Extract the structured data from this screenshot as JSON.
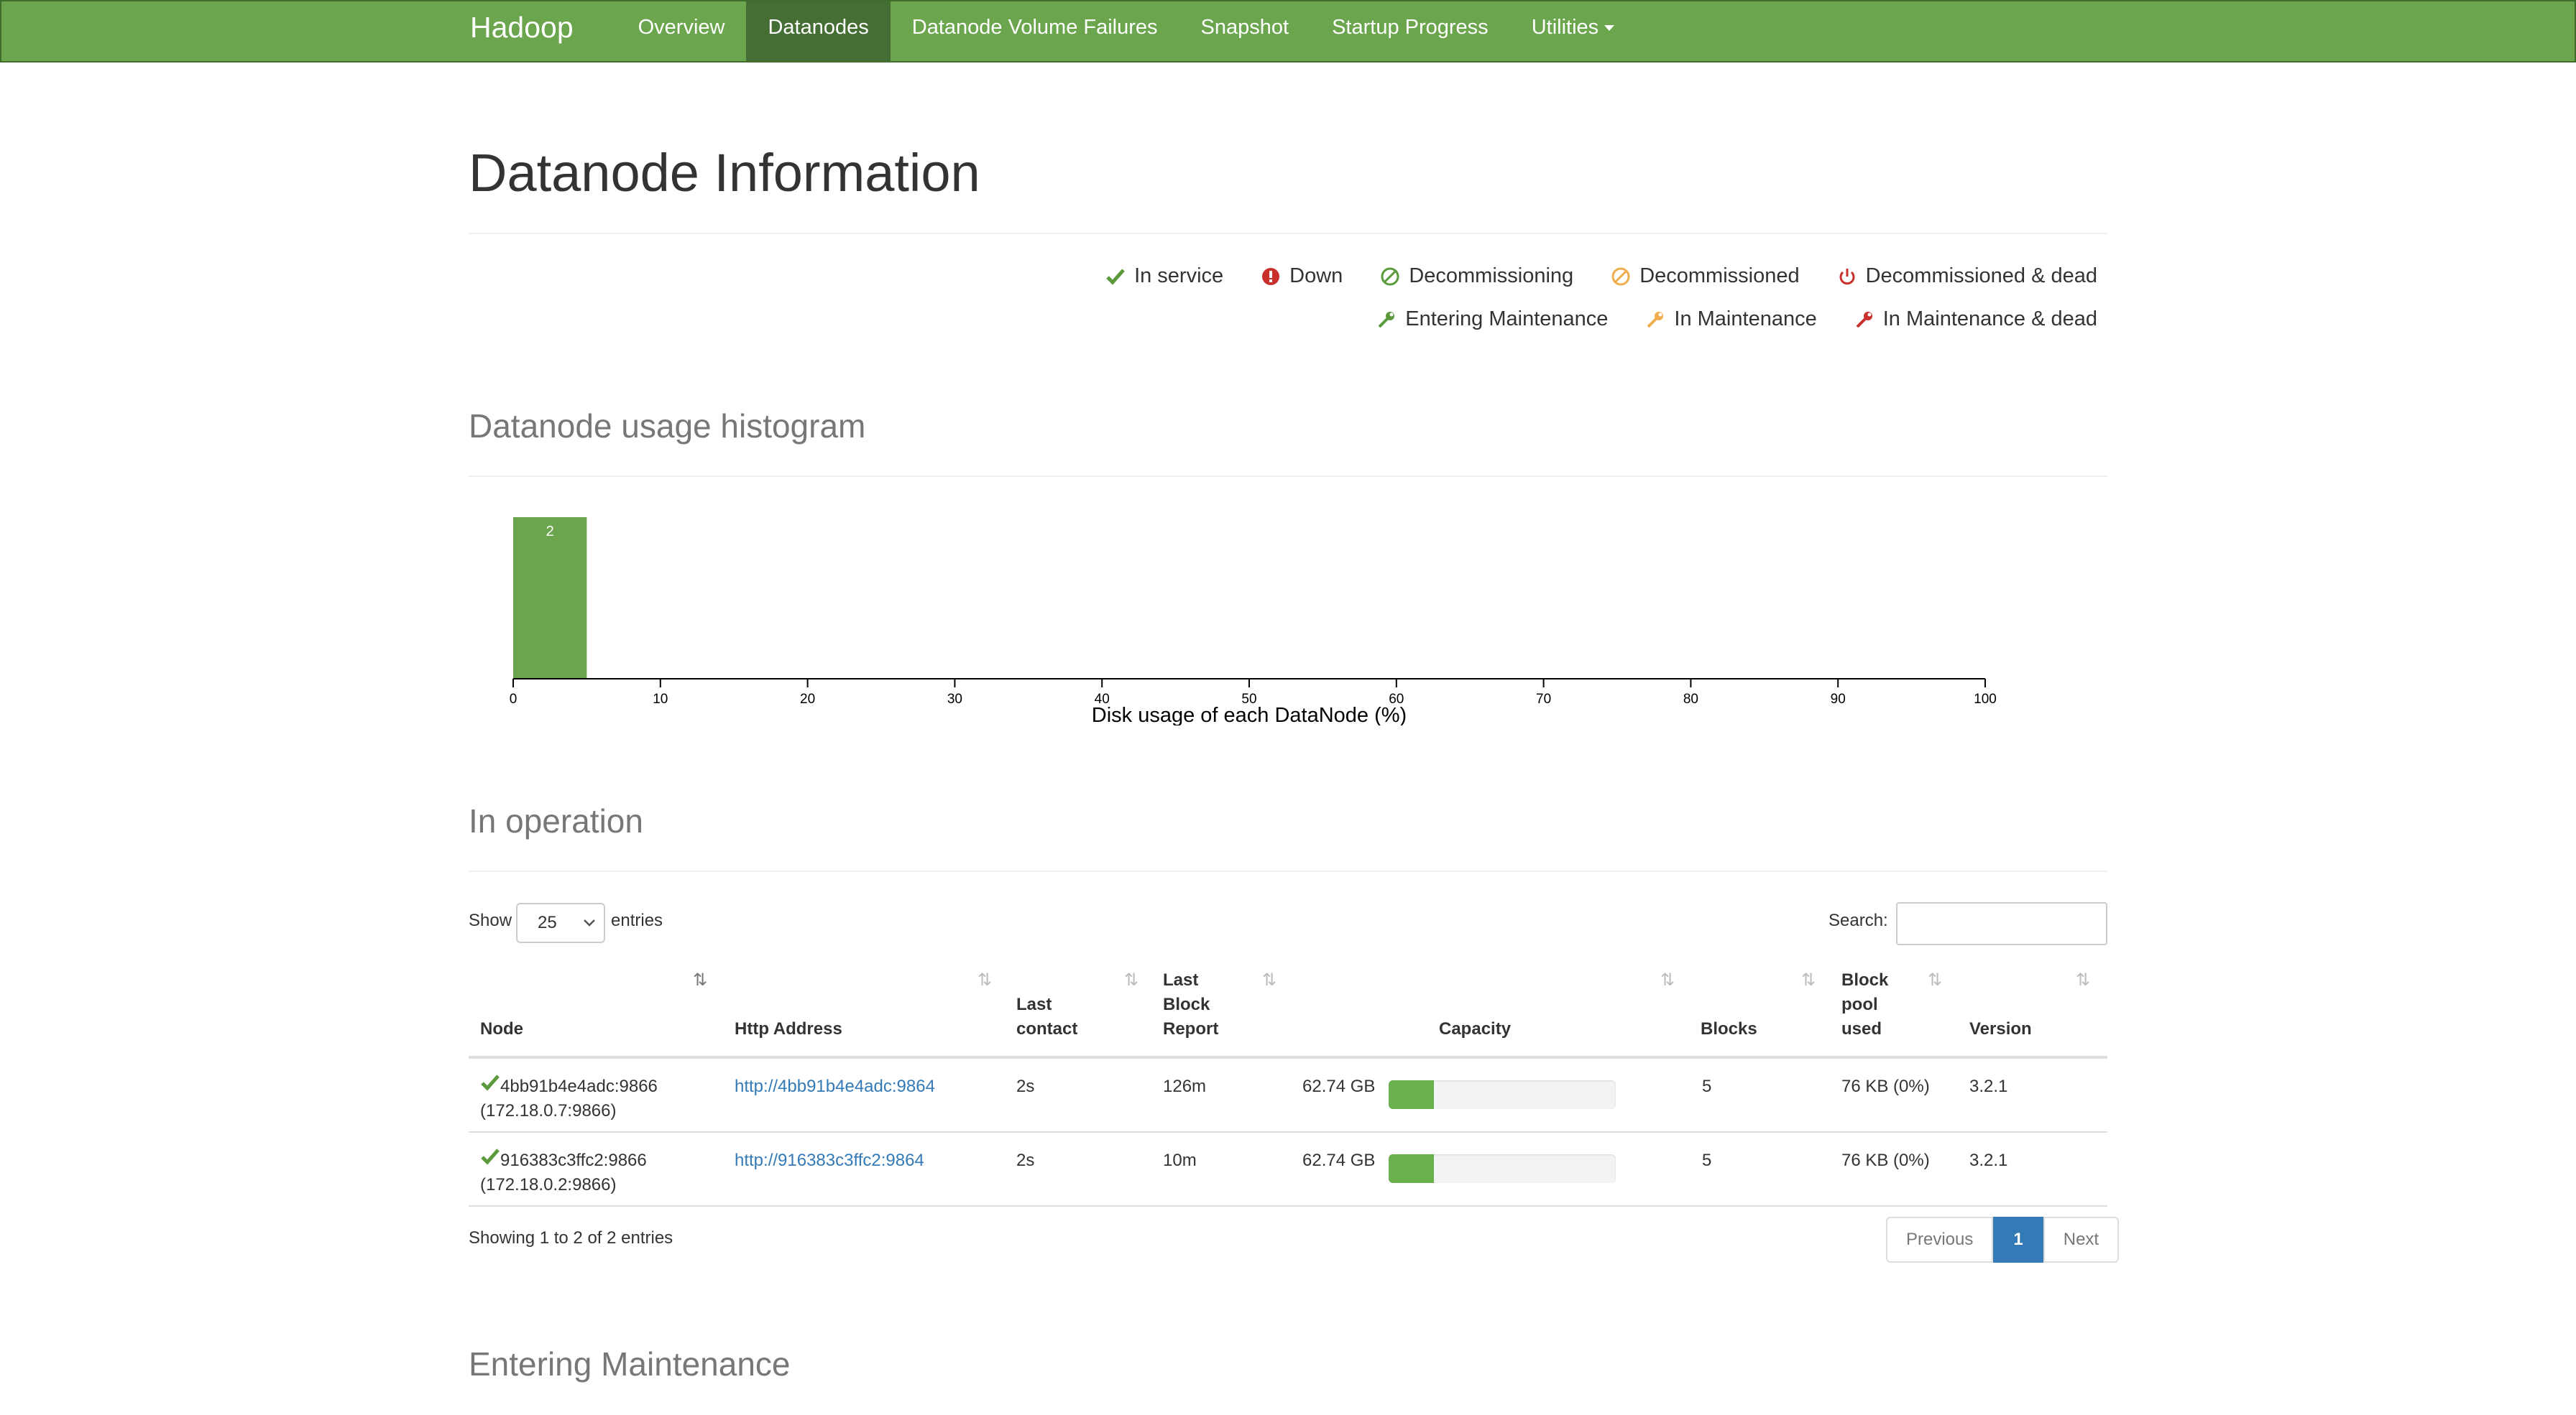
{
  "nav": {
    "brand": "Hadoop",
    "items": [
      {
        "label": "Overview"
      },
      {
        "label": "Datanodes"
      },
      {
        "label": "Datanode Volume Failures"
      },
      {
        "label": "Snapshot"
      },
      {
        "label": "Startup Progress"
      },
      {
        "label": "Utilities"
      }
    ]
  },
  "page": {
    "title": "Datanode Information"
  },
  "legend": {
    "in_service": "In service",
    "down": "Down",
    "decommissioning": "Decommissioning",
    "decommissioned": "Decommissioned",
    "decommissioned_dead": "Decommissioned & dead",
    "entering_maintenance": "Entering Maintenance",
    "in_maintenance": "In Maintenance",
    "in_maintenance_dead": "In Maintenance & dead",
    "colors": {
      "green": "#5a9a3c",
      "red": "#c9302c",
      "orange": "#f0ad4e"
    }
  },
  "histogram": {
    "title": "Datanode usage histogram"
  },
  "chart_data": {
    "type": "bar",
    "title": "",
    "xlabel": "Disk usage of each DataNode (%)",
    "ylabel": "",
    "xlim": [
      0,
      100
    ],
    "ticks": [
      "0",
      "10",
      "20",
      "30",
      "40",
      "50",
      "60",
      "70",
      "80",
      "90",
      "100"
    ],
    "bins": [
      {
        "x0": 0,
        "x1": 5,
        "count": 2
      }
    ],
    "bar_color": "#6ba54e"
  },
  "in_operation": {
    "title": "In operation",
    "show_label": "Show",
    "entries_value": "25",
    "entries_label": "entries",
    "search_label": "Search:",
    "columns": {
      "node": "Node",
      "http": "Http Address",
      "last_contact": [
        "Last",
        "contact"
      ],
      "last_block": [
        "Last",
        "Block",
        "Report"
      ],
      "capacity": "Capacity",
      "blocks": "Blocks",
      "pool": [
        "Block",
        "pool",
        "used"
      ],
      "version": "Version"
    },
    "rows": [
      {
        "node": "4bb91b4e4adc:9866",
        "ip": "(172.18.0.7:9866)",
        "http": "http://4bb91b4e4adc:9864",
        "last_contact": "2s",
        "last_block": "126m",
        "capacity": "62.74 GB",
        "used_fraction": 0.2,
        "blocks": "5",
        "pool": "76 KB (0%)",
        "version": "3.2.1"
      },
      {
        "node": "916383c3ffc2:9866",
        "ip": "(172.18.0.2:9866)",
        "http": "http://916383c3ffc2:9864",
        "last_contact": "2s",
        "last_block": "10m",
        "capacity": "62.74 GB",
        "used_fraction": 0.2,
        "blocks": "5",
        "pool": "76 KB (0%)",
        "version": "3.2.1"
      }
    ],
    "info": "Showing 1 to 2 of 2 entries",
    "pager": {
      "previous": "Previous",
      "page": "1",
      "next": "Next"
    }
  },
  "entering_maintenance": {
    "title": "Entering Maintenance"
  }
}
